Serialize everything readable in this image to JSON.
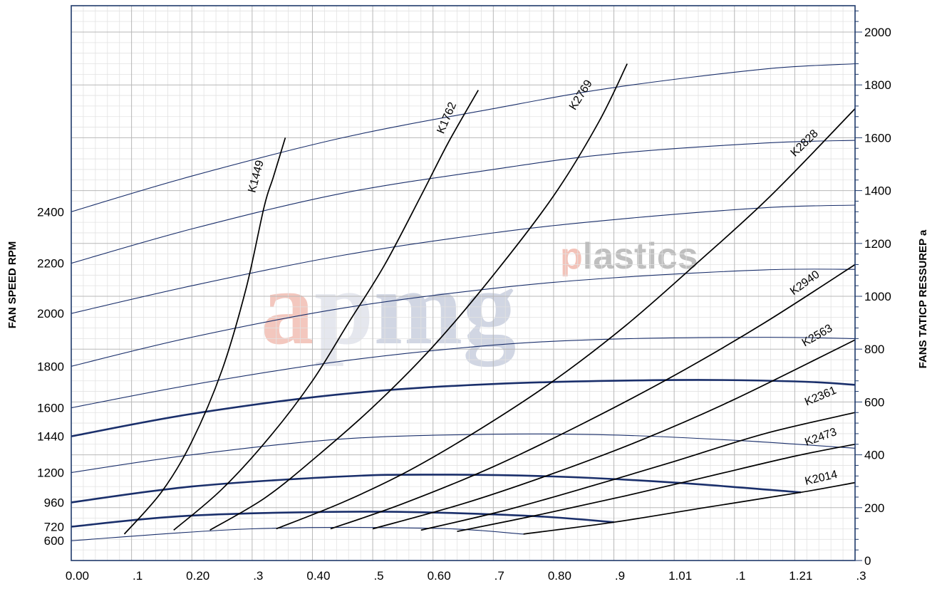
{
  "chart_data": {
    "type": "line",
    "title": "",
    "watermark": {
      "big_a": "a",
      "big_p": "p",
      "big_mg": "mg",
      "small_p": "p",
      "small_rest": "lastics",
      "colors": {
        "a": "#f3c7be",
        "p": "#e5e7ee",
        "mg": "#d1d6e3",
        "small_p": "#f3c2b8",
        "small_rest": "#bfbfbf"
      }
    },
    "x_axis": {
      "range": [
        0.0,
        1.3
      ],
      "tick_labels": [
        "0.00",
        ".1",
        "0.20",
        ".3",
        "0.40",
        ".5",
        "0.60",
        ".7",
        "0.80",
        ".9",
        "1.01",
        ".1",
        "1.21",
        ".3"
      ]
    },
    "y_left": {
      "label": "FAN SPEED RPM",
      "ticks": [
        {
          "label": "600",
          "pa": 75
        },
        {
          "label": "720",
          "pa": 128
        },
        {
          "label": "960",
          "pa": 220
        },
        {
          "label": "1200",
          "pa": 333
        },
        {
          "label": "1440",
          "pa": 470
        },
        {
          "label": "1600",
          "pa": 578
        },
        {
          "label": "1800",
          "pa": 735
        },
        {
          "label": "2000",
          "pa": 935
        },
        {
          "label": "2200",
          "pa": 1125
        },
        {
          "label": "2400",
          "pa": 1320
        }
      ]
    },
    "y_right": {
      "label": "FANS TATICP RESSUREP a",
      "range": [
        0,
        2000
      ],
      "ticks": [
        0,
        200,
        400,
        600,
        800,
        1000,
        1200,
        1400,
        1600,
        1800,
        2000
      ]
    },
    "grid": true,
    "speed_curves": [
      {
        "rpm": "600",
        "weight": "thin",
        "x": [
          0.0,
          0.3,
          0.6,
          0.75
        ],
        "y": [
          75,
          120,
          122,
          100
        ]
      },
      {
        "rpm": "720",
        "weight": "bold",
        "x": [
          0.0,
          0.2,
          0.5,
          0.75,
          0.9
        ],
        "y": [
          128,
          170,
          185,
          170,
          145
        ]
      },
      {
        "rpm": "960",
        "weight": "bold",
        "x": [
          0.0,
          0.2,
          0.45,
          0.6,
          0.8,
          1.0,
          1.21
        ],
        "y": [
          220,
          280,
          318,
          325,
          318,
          295,
          258
        ]
      },
      {
        "rpm": "1200",
        "weight": "thin",
        "x": [
          0.0,
          0.2,
          0.45,
          0.7,
          0.9,
          1.1,
          1.3
        ],
        "y": [
          333,
          400,
          460,
          478,
          475,
          455,
          425
        ]
      },
      {
        "rpm": "1440",
        "weight": "bold",
        "x": [
          0.0,
          0.2,
          0.45,
          0.7,
          1.0,
          1.2,
          1.3
        ],
        "y": [
          470,
          555,
          630,
          668,
          683,
          678,
          665
        ]
      },
      {
        "rpm": "1600",
        "weight": "thin",
        "x": [
          0.0,
          0.2,
          0.45,
          0.7,
          0.9,
          1.15,
          1.3
        ],
        "y": [
          578,
          665,
          755,
          815,
          838,
          845,
          840
        ]
      },
      {
        "rpm": "1800",
        "weight": "thin",
        "x": [
          0.0,
          0.2,
          0.45,
          0.7,
          0.9,
          1.15,
          1.3
        ],
        "y": [
          735,
          845,
          955,
          1030,
          1070,
          1100,
          1102
        ]
      },
      {
        "rpm": "2000",
        "weight": "thin",
        "x": [
          0.0,
          0.2,
          0.45,
          0.7,
          0.9,
          1.15,
          1.3
        ],
        "y": [
          935,
          1040,
          1155,
          1240,
          1290,
          1335,
          1345
        ]
      },
      {
        "rpm": "2200",
        "weight": "thin",
        "x": [
          0.0,
          0.2,
          0.45,
          0.7,
          0.9,
          1.15,
          1.3
        ],
        "y": [
          1125,
          1255,
          1390,
          1480,
          1540,
          1580,
          1590
        ]
      },
      {
        "rpm": "2400",
        "weight": "thin",
        "x": [
          0.0,
          0.2,
          0.45,
          0.7,
          0.9,
          1.15,
          1.3
        ],
        "y": [
          1320,
          1455,
          1600,
          1710,
          1790,
          1860,
          1880
        ]
      }
    ],
    "system_curves": [
      {
        "name": "K1449",
        "label_x": 0.312,
        "label_y": 1450,
        "label_angle": -75,
        "x": [
          0.088,
          0.15,
          0.2,
          0.25,
          0.29,
          0.32,
          0.335,
          0.355
        ],
        "y": [
          100,
          260,
          450,
          720,
          1030,
          1340,
          1450,
          1600
        ]
      },
      {
        "name": "K1762",
        "label_x": 0.628,
        "label_y": 1670,
        "label_angle": -67,
        "x": [
          0.17,
          0.25,
          0.33,
          0.4,
          0.46,
          0.52,
          0.58,
          0.625,
          0.675
        ],
        "y": [
          115,
          270,
          470,
          680,
          900,
          1120,
          1380,
          1580,
          1780
        ]
      },
      {
        "name": "K2769",
        "label_x": 0.85,
        "label_y": 1755,
        "label_angle": -58,
        "x": [
          0.23,
          0.32,
          0.4,
          0.5,
          0.6,
          0.7,
          0.8,
          0.875,
          0.922
        ],
        "y": [
          115,
          235,
          380,
          580,
          810,
          1080,
          1380,
          1660,
          1880
        ]
      },
      {
        "name": "K2828",
        "label_x": 1.22,
        "label_y": 1570,
        "label_angle": -44,
        "x": [
          0.34,
          0.45,
          0.56,
          0.68,
          0.8,
          0.92,
          1.04,
          1.16,
          1.3
        ],
        "y": [
          120,
          220,
          340,
          500,
          680,
          890,
          1130,
          1380,
          1710
        ]
      },
      {
        "name": "K2940",
        "label_x": 1.22,
        "label_y": 1040,
        "label_angle": -36,
        "x": [
          0.43,
          0.55,
          0.7,
          0.85,
          1.0,
          1.15,
          1.3
        ],
        "y": [
          120,
          215,
          355,
          520,
          700,
          900,
          1120
        ]
      },
      {
        "name": "K2563",
        "label_x": 1.24,
        "label_y": 840,
        "label_angle": -30,
        "x": [
          0.5,
          0.65,
          0.8,
          0.95,
          1.1,
          1.3
        ],
        "y": [
          120,
          215,
          330,
          460,
          610,
          835
        ]
      },
      {
        "name": "K2361",
        "label_x": 1.245,
        "label_y": 610,
        "label_angle": -23,
        "x": [
          0.58,
          0.72,
          0.86,
          1.0,
          1.15,
          1.3
        ],
        "y": [
          115,
          190,
          280,
          375,
          480,
          560
        ]
      },
      {
        "name": "K2473",
        "label_x": 1.245,
        "label_y": 455,
        "label_angle": -20,
        "x": [
          0.64,
          0.78,
          0.92,
          1.06,
          1.2,
          1.3
        ],
        "y": [
          110,
          175,
          245,
          320,
          395,
          440
        ]
      },
      {
        "name": "K2014",
        "label_x": 1.245,
        "label_y": 300,
        "label_angle": -13,
        "x": [
          0.75,
          0.9,
          1.05,
          1.21,
          1.3
        ],
        "y": [
          100,
          145,
          200,
          258,
          295
        ]
      }
    ]
  }
}
